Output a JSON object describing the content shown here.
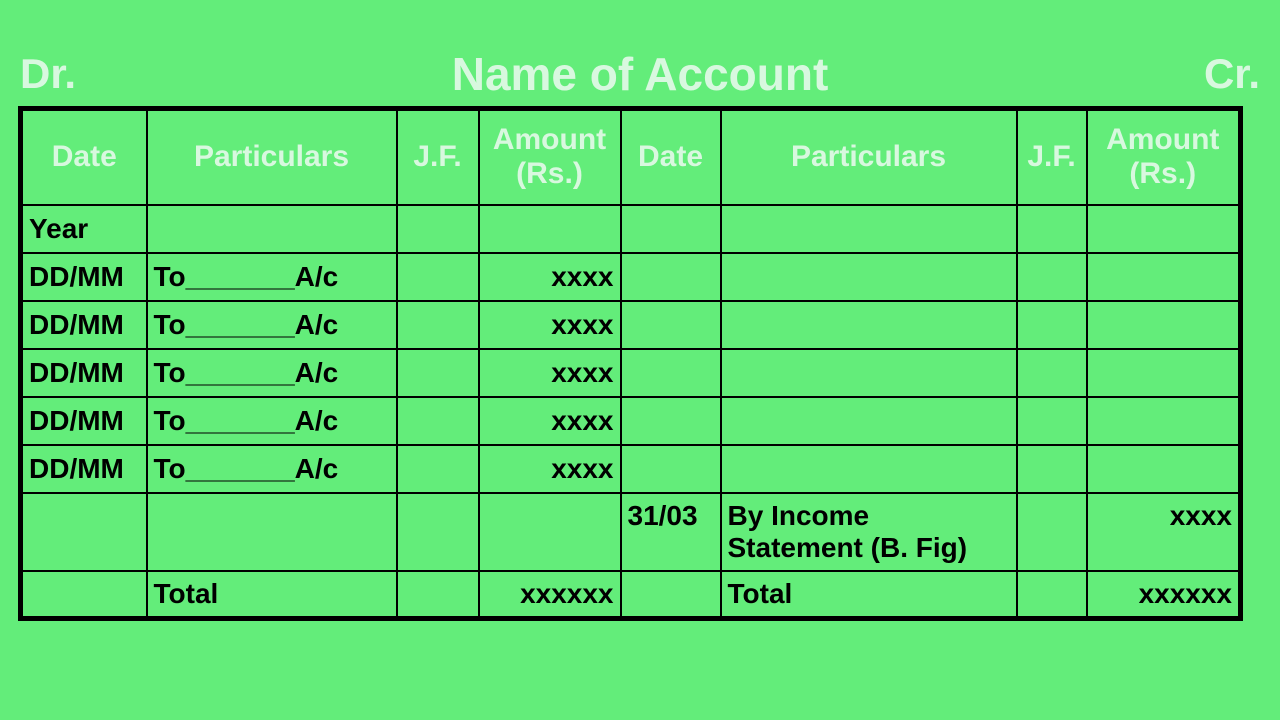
{
  "header": {
    "dr": "Dr.",
    "cr": "Cr.",
    "title": "Name of Account"
  },
  "table": {
    "background_color": "#63ed7a",
    "border_color": "#000000",
    "header_text_color": "#d8f8df",
    "body_text_color": "#000000",
    "outer_border_width": 5,
    "inner_border_width": 2,
    "header_fontsize": 30,
    "body_fontsize": 28,
    "columns": {
      "left": [
        "Date",
        "Particulars",
        "J.F.",
        "Amount (Rs.)"
      ],
      "right": [
        "Date",
        "Particulars",
        "J.F.",
        "Amount (Rs.)"
      ]
    },
    "year_label": "Year",
    "debit_rows": [
      {
        "date": "DD/MM",
        "particulars": "To_______A/c",
        "jf": "",
        "amount": "xxxx"
      },
      {
        "date": "DD/MM",
        "particulars": "To_______A/c",
        "jf": "",
        "amount": "xxxx"
      },
      {
        "date": "DD/MM",
        "particulars": "To_______A/c",
        "jf": "",
        "amount": "xxxx"
      },
      {
        "date": "DD/MM",
        "particulars": "To_______A/c",
        "jf": "",
        "amount": "xxxx"
      },
      {
        "date": "DD/MM",
        "particulars": "To_______A/c",
        "jf": "",
        "amount": "xxxx"
      }
    ],
    "credit_entry": {
      "date": "31/03",
      "particulars": "By Income Statement (B. Fig)",
      "jf": "",
      "amount": "xxxx"
    },
    "totals": {
      "debit_label": "Total",
      "debit_amount": "xxxxxx",
      "credit_label": "Total",
      "credit_amount": "xxxxxx"
    }
  }
}
